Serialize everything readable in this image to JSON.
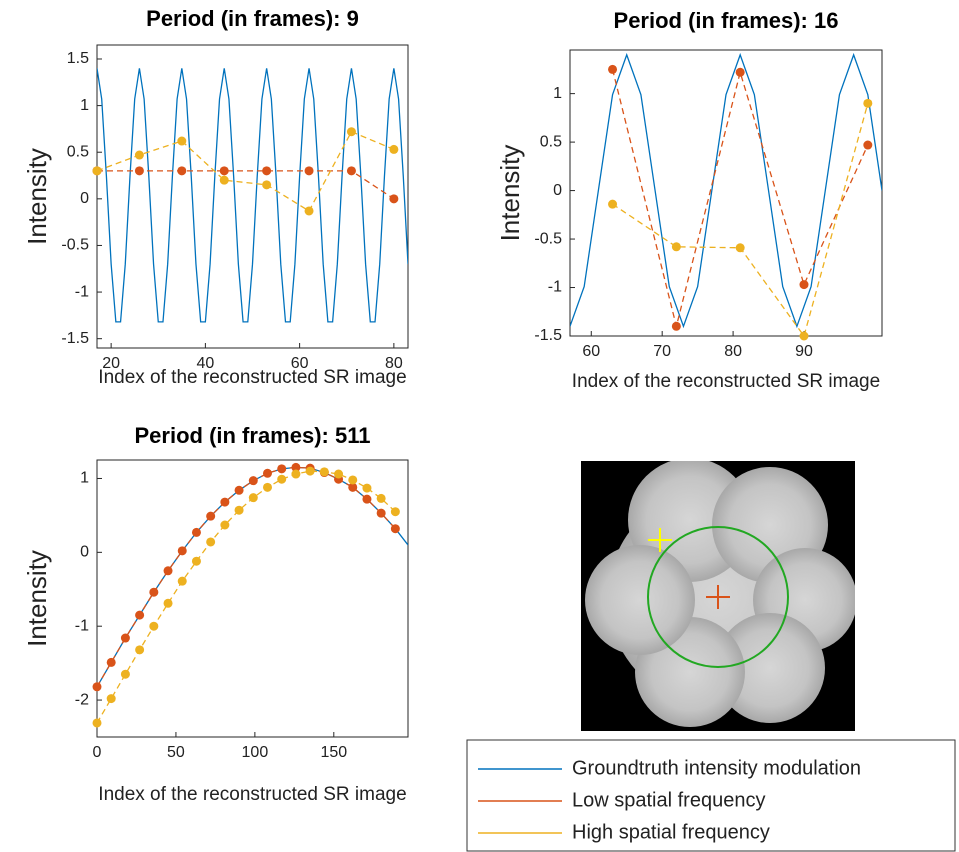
{
  "chart_data": [
    {
      "type": "line",
      "title": "Period (in frames): 9",
      "xlabel": "Index of the reconstructed SR image",
      "ylabel": "Intensity",
      "xlim": [
        17,
        83
      ],
      "xticks": [
        20,
        40,
        60,
        80
      ],
      "ylim": [
        -1.6,
        1.65
      ],
      "yticks": [
        -1.5,
        -1,
        -0.5,
        0,
        0.5,
        1,
        1.5
      ],
      "series": [
        {
          "name": "Groundtruth intensity modulation",
          "color": "#0072BD",
          "style": "solid",
          "marker": false,
          "x": [
            17,
            18,
            19,
            20,
            21,
            22,
            23,
            24,
            25,
            26,
            27,
            28,
            29,
            30,
            31,
            32,
            33,
            34,
            35,
            36,
            37,
            38,
            39,
            40,
            41,
            42,
            43,
            44,
            45,
            46,
            47,
            48,
            49,
            50,
            51,
            52,
            53,
            54,
            55,
            56,
            57,
            58,
            59,
            60,
            61,
            62,
            63,
            64,
            65,
            66,
            67,
            68,
            69,
            70,
            71,
            72,
            73,
            74,
            75,
            76,
            77,
            78,
            79,
            80,
            81,
            82,
            83
          ],
          "values": [
            1.4,
            1.07,
            0.24,
            -0.7,
            -1.32,
            -1.32,
            -0.7,
            0.24,
            1.07,
            1.4,
            1.07,
            0.24,
            -0.7,
            -1.32,
            -1.32,
            -0.7,
            0.24,
            1.07,
            1.4,
            1.07,
            0.24,
            -0.7,
            -1.32,
            -1.32,
            -0.7,
            0.24,
            1.07,
            1.4,
            1.07,
            0.24,
            -0.7,
            -1.32,
            -1.32,
            -0.7,
            0.24,
            1.07,
            1.4,
            1.07,
            0.24,
            -0.7,
            -1.32,
            -1.32,
            -0.7,
            0.24,
            1.07,
            1.4,
            1.07,
            0.24,
            -0.7,
            -1.32,
            -1.32,
            -0.7,
            0.24,
            1.07,
            1.4,
            1.07,
            0.24,
            -0.7,
            -1.32,
            -1.32,
            -0.7,
            0.24,
            1.07,
            1.4,
            1.07,
            0.24,
            -0.7
          ]
        },
        {
          "name": "Low spatial frequency",
          "color": "#D95319",
          "style": "dashed",
          "marker": true,
          "x": [
            17,
            26,
            35,
            44,
            53,
            62,
            71,
            80
          ],
          "values": [
            0.3,
            0.3,
            0.3,
            0.3,
            0.3,
            0.3,
            0.3,
            0.0
          ]
        },
        {
          "name": "High spatial frequency",
          "color": "#EDB120",
          "style": "dashed",
          "marker": true,
          "x": [
            17,
            26,
            35,
            44,
            53,
            62,
            71,
            80
          ],
          "values": [
            0.3,
            0.47,
            0.62,
            0.2,
            0.15,
            -0.13,
            0.72,
            0.53
          ]
        }
      ]
    },
    {
      "type": "line",
      "title": "Period (in frames): 16",
      "xlabel": "Index of the reconstructed SR image",
      "ylabel": "Intensity",
      "xlim": [
        57,
        101
      ],
      "xticks": [
        60,
        70,
        80,
        90
      ],
      "ylim": [
        -1.5,
        1.45
      ],
      "yticks": [
        -1.5,
        -1,
        -0.5,
        0,
        0.5,
        1
      ],
      "series": [
        {
          "color": "#0072BD",
          "style": "solid",
          "marker": false,
          "x": [
            57,
            59,
            61,
            63,
            65,
            67,
            69,
            71,
            73,
            75,
            77,
            79,
            81,
            83,
            85,
            87,
            89,
            91,
            93,
            95,
            97,
            99,
            101
          ],
          "values": [
            -1.4,
            -0.99,
            0,
            0.99,
            1.4,
            0.99,
            0,
            -0.99,
            -1.4,
            -0.99,
            0,
            0.99,
            1.4,
            0.99,
            0,
            -0.99,
            -1.4,
            -0.99,
            0,
            0.99,
            1.4,
            0.99,
            0
          ]
        },
        {
          "color": "#D95319",
          "style": "dashed",
          "marker": true,
          "x": [
            63,
            72,
            81,
            90,
            99
          ],
          "values": [
            1.25,
            -1.4,
            1.22,
            -0.97,
            0.47
          ]
        },
        {
          "color": "#EDB120",
          "style": "dashed",
          "marker": true,
          "x": [
            63,
            72,
            81,
            90,
            99
          ],
          "values": [
            -0.14,
            -0.58,
            -0.59,
            -1.5,
            0.9
          ]
        }
      ]
    },
    {
      "type": "line",
      "title": "Period (in frames): 511",
      "xlabel": "Index of the reconstructed SR image",
      "ylabel": "Intensity",
      "xlim": [
        0,
        197
      ],
      "xticks": [
        0,
        50,
        100,
        150
      ],
      "ylim": [
        -2.5,
        1.25
      ],
      "yticks": [
        -2,
        -1,
        0,
        1
      ],
      "series": [
        {
          "color": "#0072BD",
          "style": "solid",
          "marker": false,
          "x": [
            0,
            9,
            18,
            27,
            36,
            45,
            54,
            63,
            72,
            81,
            90,
            99,
            108,
            117,
            126,
            135,
            144,
            153,
            162,
            171,
            180,
            189,
            197
          ],
          "values": [
            -1.82,
            -1.49,
            -1.16,
            -0.85,
            -0.54,
            -0.25,
            0.02,
            0.27,
            0.49,
            0.68,
            0.84,
            0.97,
            1.07,
            1.13,
            1.15,
            1.14,
            1.08,
            0.99,
            0.88,
            0.72,
            0.53,
            0.32,
            0.1
          ]
        },
        {
          "color": "#D95319",
          "style": "dashed",
          "marker": true,
          "x": [
            0,
            9,
            18,
            27,
            36,
            45,
            54,
            63,
            72,
            81,
            90,
            99,
            108,
            117,
            126,
            135,
            144,
            153,
            162,
            171,
            180,
            189
          ],
          "values": [
            -1.82,
            -1.49,
            -1.16,
            -0.85,
            -0.54,
            -0.25,
            0.02,
            0.27,
            0.49,
            0.68,
            0.84,
            0.97,
            1.07,
            1.13,
            1.15,
            1.14,
            1.08,
            0.99,
            0.88,
            0.72,
            0.53,
            0.32
          ]
        },
        {
          "color": "#EDB120",
          "style": "dashed",
          "marker": true,
          "x": [
            0,
            9,
            18,
            27,
            36,
            45,
            54,
            63,
            72,
            81,
            90,
            99,
            108,
            117,
            126,
            135,
            144,
            153,
            162,
            171,
            180,
            189
          ],
          "values": [
            -2.31,
            -1.98,
            -1.65,
            -1.32,
            -1.0,
            -0.69,
            -0.39,
            -0.12,
            0.14,
            0.37,
            0.57,
            0.74,
            0.88,
            0.99,
            1.06,
            1.1,
            1.09,
            1.06,
            0.98,
            0.87,
            0.73,
            0.55
          ]
        }
      ]
    }
  ]
}
